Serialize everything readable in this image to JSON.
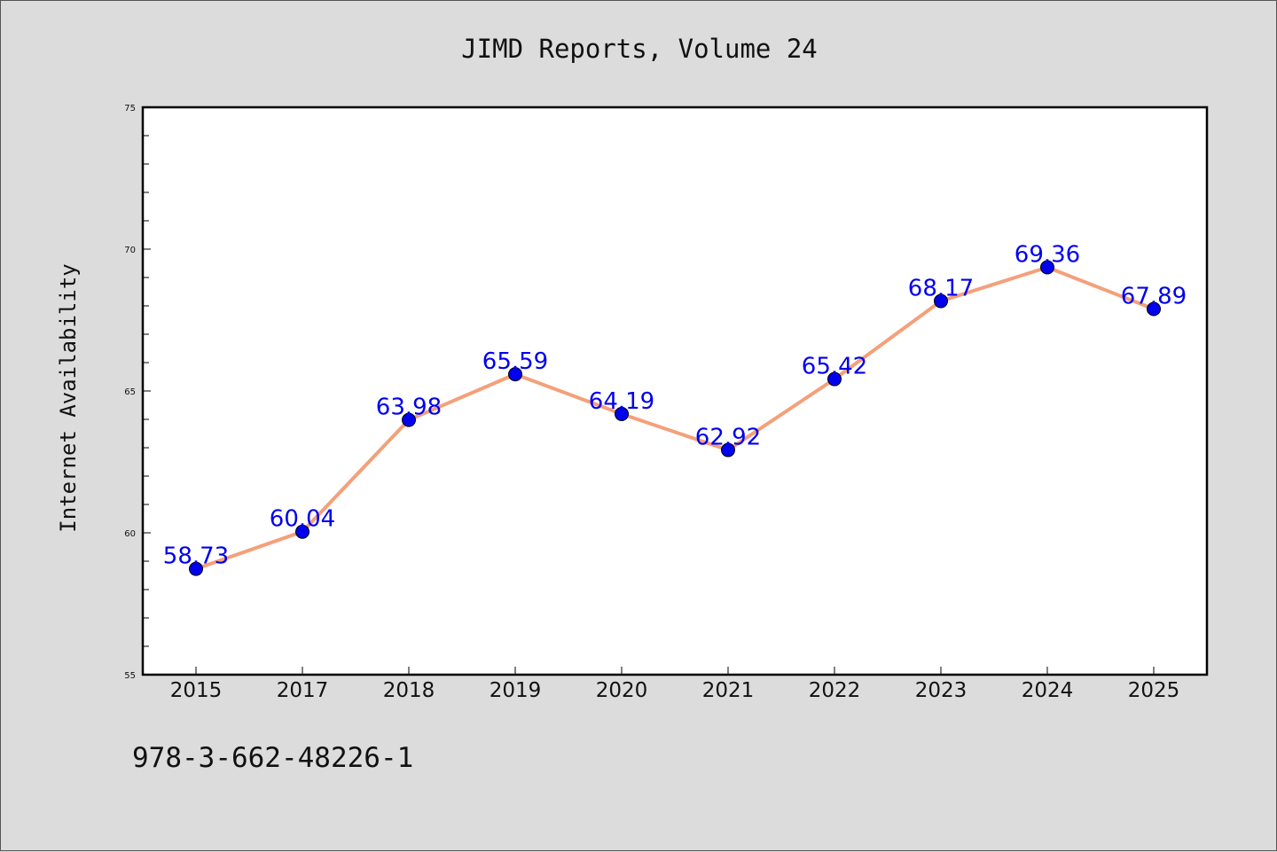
{
  "chart_data": {
    "type": "line",
    "title": "JIMD Reports, Volume 24",
    "ylabel": "Internet Availability",
    "xlabel": "",
    "categories": [
      "2015",
      "2017",
      "2018",
      "2019",
      "2020",
      "2021",
      "2022",
      "2023",
      "2024",
      "2025"
    ],
    "series": [
      {
        "values": [
          58.73,
          60.04,
          63.98,
          65.59,
          64.19,
          62.92,
          65.42,
          68.17,
          69.36,
          67.89
        ],
        "labels": [
          "58.73",
          "60.04",
          "63.98",
          "65.59",
          "64.19",
          "62.92",
          "65.42",
          "68.17",
          "69.36",
          "67.89"
        ],
        "line_color": "#f4a07a",
        "marker_color": "#0000ee"
      }
    ],
    "ylim": [
      55,
      75
    ],
    "yticks": [
      "55",
      "60",
      "65",
      "70",
      "75"
    ],
    "grid": false,
    "background": "#dcdcdc",
    "plot_background": "#ffffff"
  },
  "footer": {
    "isbn": "978-3-662-48226-1"
  }
}
